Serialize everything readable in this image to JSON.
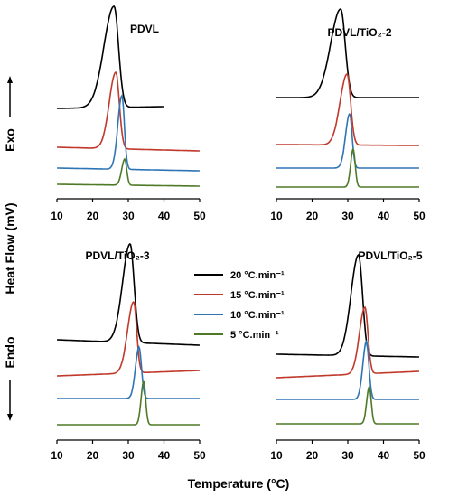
{
  "chart_data": {
    "type": "line",
    "xlabel": "Temperature (°C)",
    "ylabel": "Heat Flow (mV)",
    "ylabel_exo": "Exo",
    "ylabel_endo": "Endo",
    "xlim": [
      10,
      50
    ],
    "xticks": [
      "10",
      "20",
      "30",
      "40",
      "50"
    ],
    "legend": {
      "placement": "center",
      "entries": [
        {
          "label": "20 °C.min⁻¹",
          "color": "#000000"
        },
        {
          "label": "15 °C.min⁻¹",
          "color": "#c0392b"
        },
        {
          "label": "10 °C.min⁻¹",
          "color": "#2e75b6"
        },
        {
          "label": "5 °C.min⁻¹",
          "color": "#4e7a27"
        }
      ]
    },
    "panels": [
      {
        "title": "PDVL",
        "series": [
          {
            "color": "#000000",
            "peak": 26.0,
            "baseline_left": 120,
            "baseline_right": 118,
            "peak_y": 7,
            "width_left": 4.0,
            "width_right": 1.8,
            "x_end": 40
          },
          {
            "color": "#c0392b",
            "peak": 26.5,
            "baseline_left": 163,
            "baseline_right": 167,
            "peak_y": 80,
            "width_left": 2.6,
            "width_right": 1.4,
            "x_end": 50
          },
          {
            "color": "#2e75b6",
            "peak": 28.2,
            "baseline_left": 186,
            "baseline_right": 189,
            "peak_y": 106,
            "width_left": 1.6,
            "width_right": 1.0,
            "x_end": 50
          },
          {
            "color": "#4e7a27",
            "peak": 29.0,
            "baseline_left": 204,
            "baseline_right": 206,
            "peak_y": 176,
            "width_left": 1.2,
            "width_right": 0.8,
            "x_end": 50
          }
        ]
      },
      {
        "title": "PDVL/TiO₂-2",
        "series": [
          {
            "color": "#000000",
            "peak": 28.0,
            "baseline_left": 108,
            "baseline_right": 108,
            "peak_y": 10,
            "width_left": 4.0,
            "width_right": 1.8,
            "x_end": 50
          },
          {
            "color": "#c0392b",
            "peak": 29.8,
            "baseline_left": 160,
            "baseline_right": 161,
            "peak_y": 82,
            "width_left": 2.8,
            "width_right": 1.4,
            "x_end": 50
          },
          {
            "color": "#2e75b6",
            "peak": 30.5,
            "baseline_left": 186,
            "baseline_right": 186,
            "peak_y": 126,
            "width_left": 1.6,
            "width_right": 1.0,
            "x_end": 50
          },
          {
            "color": "#4e7a27",
            "peak": 31.5,
            "baseline_left": 207,
            "baseline_right": 207,
            "peak_y": 165,
            "width_left": 1.0,
            "width_right": 0.8,
            "x_end": 50
          }
        ]
      },
      {
        "title": "PDVL/TiO₂-3",
        "series": [
          {
            "color": "#000000",
            "peak": 30.5,
            "baseline_left": 376,
            "baseline_right": 382,
            "peak_y": 270,
            "width_left": 3.0,
            "width_right": 1.6,
            "x_end": 50
          },
          {
            "color": "#c0392b",
            "peak": 31.5,
            "baseline_left": 416,
            "baseline_right": 410,
            "peak_y": 334,
            "width_left": 2.4,
            "width_right": 1.2,
            "x_end": 50
          },
          {
            "color": "#2e75b6",
            "peak": 33.0,
            "baseline_left": 441,
            "baseline_right": 441,
            "peak_y": 384,
            "width_left": 1.4,
            "width_right": 1.0,
            "x_end": 50
          },
          {
            "color": "#4e7a27",
            "peak": 34.3,
            "baseline_left": 470,
            "baseline_right": 470,
            "peak_y": 422,
            "width_left": 1.0,
            "width_right": 0.8,
            "x_end": 50
          }
        ]
      },
      {
        "title": "PDVL/TiO₂-5",
        "series": [
          {
            "color": "#000000",
            "peak": 33.0,
            "baseline_left": 392,
            "baseline_right": 395,
            "peak_y": 282,
            "width_left": 3.0,
            "width_right": 1.6,
            "x_end": 50
          },
          {
            "color": "#c0392b",
            "peak": 34.8,
            "baseline_left": 418,
            "baseline_right": 411,
            "peak_y": 340,
            "width_left": 2.2,
            "width_right": 1.2,
            "x_end": 50
          },
          {
            "color": "#2e75b6",
            "peak": 35.2,
            "baseline_left": 442,
            "baseline_right": 442,
            "peak_y": 378,
            "width_left": 1.4,
            "width_right": 1.0,
            "x_end": 50
          },
          {
            "color": "#4e7a27",
            "peak": 36.0,
            "baseline_left": 469,
            "baseline_right": 469,
            "peak_y": 428,
            "width_left": 1.0,
            "width_right": 0.8,
            "x_end": 50
          }
        ]
      }
    ]
  }
}
